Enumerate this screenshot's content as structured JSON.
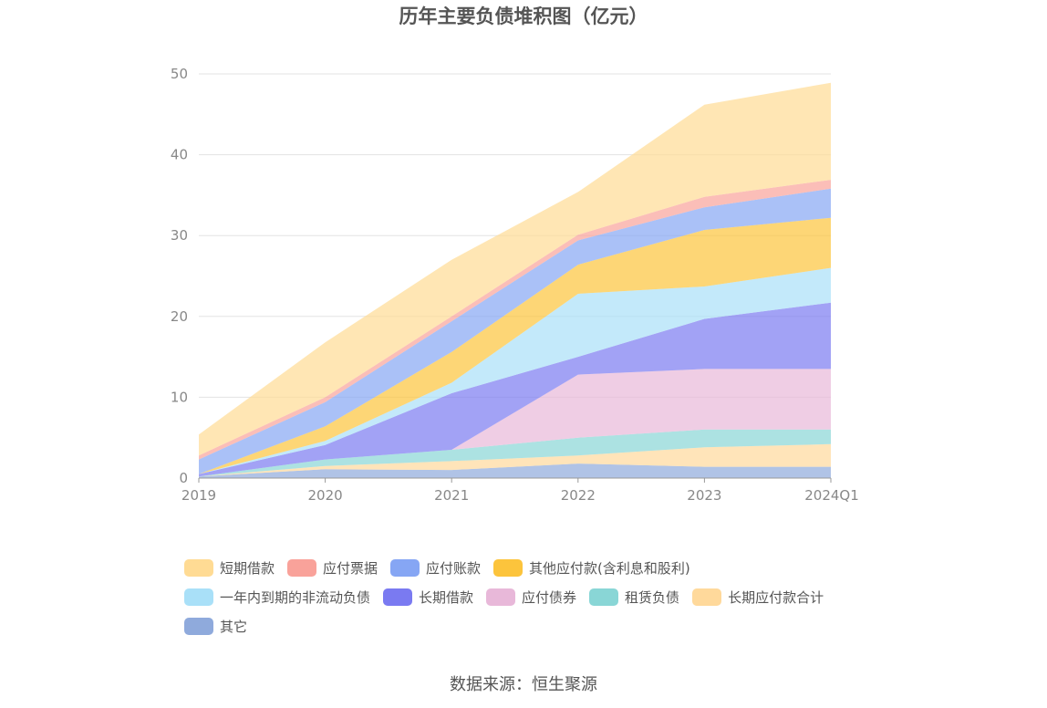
{
  "chart_data": {
    "type": "area",
    "title": "历年主要负债堆积图（亿元）",
    "categories": [
      "2019",
      "2020",
      "2021",
      "2022",
      "2023",
      "2024Q1"
    ],
    "ylim": [
      0,
      50
    ],
    "yticks": [
      0,
      10,
      20,
      30,
      40,
      50
    ],
    "grid": true,
    "legend_position": "bottom",
    "series": [
      {
        "name": "其它",
        "color": "#8faadc",
        "values": [
          0.2,
          1.1,
          1.0,
          1.8,
          1.4,
          1.4
        ]
      },
      {
        "name": "长期应付款合计",
        "color": "#ffd99b",
        "values": [
          0.0,
          0.4,
          1.1,
          1.0,
          2.4,
          2.8
        ]
      },
      {
        "name": "租赁负债",
        "color": "#89d6d6",
        "values": [
          0.0,
          0.8,
          1.4,
          2.2,
          2.2,
          1.8
        ]
      },
      {
        "name": "应付债券",
        "color": "#e8b8d9",
        "values": [
          0.0,
          0.0,
          0.0,
          7.8,
          7.5,
          7.5
        ]
      },
      {
        "name": "长期借款",
        "color": "#7a7af1",
        "values": [
          0.3,
          1.8,
          7.0,
          2.2,
          6.2,
          8.2
        ]
      },
      {
        "name": "一年内到期的非流动负债",
        "color": "#a9e0f8",
        "values": [
          0.0,
          0.5,
          1.3,
          7.8,
          4.0,
          4.3
        ]
      },
      {
        "name": "其他应付款(含利息和股利)",
        "color": "#fcc43c",
        "values": [
          0.0,
          1.8,
          3.8,
          3.6,
          7.0,
          6.2
        ]
      },
      {
        "name": "应付账款",
        "color": "#86a6f4",
        "values": [
          1.8,
          3.0,
          3.8,
          3.0,
          2.8,
          3.6
        ]
      },
      {
        "name": "应付票据",
        "color": "#f9a29a",
        "values": [
          0.5,
          0.6,
          0.6,
          0.7,
          1.3,
          1.1
        ]
      },
      {
        "name": "短期借款",
        "color": "#ffdb94",
        "values": [
          2.6,
          6.8,
          7.0,
          5.3,
          11.4,
          12.0
        ]
      }
    ]
  },
  "legend_rows": [
    [
      "短期借款",
      "应付票据",
      "应付账款",
      "其他应付款(含利息和股利)"
    ],
    [
      "一年内到期的非流动负债",
      "长期借款",
      "应付债券",
      "租赁负债",
      "长期应付款合计"
    ],
    [
      "其它"
    ]
  ],
  "source": "数据来源：恒生聚源"
}
